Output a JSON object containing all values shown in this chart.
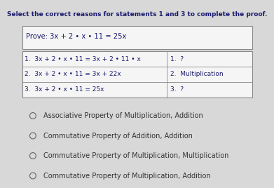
{
  "title": "Select the correct reasons for statements 1 and 3 to complete the proof.",
  "prove_label": "Prove: 3x + 2 • x • 11 = 25x",
  "table_rows": [
    [
      "1.  3x + 2 • x • 11 = 3x + 2 • 11 • x",
      "1.  ?"
    ],
    [
      "2.  3x + 2 • x • 11 = 3x + 22x",
      "2.  Multiplication"
    ],
    [
      "3.  3x + 2 • x • 11 = 25x",
      "3.  ?"
    ]
  ],
  "options": [
    "Associative Property of Multiplication, Addition",
    "Commutative Property of Addition, Addition",
    "Commutative Property of Multiplication, Multiplication",
    "Commutative Property of Multiplication, Addition"
  ],
  "bg_color": "#d8d8d8",
  "box_color": "#f5f5f5",
  "title_color": "#1a1a6e",
  "text_color": "#1a1a6e",
  "border_color": "#888888",
  "option_text_color": "#333333",
  "title_fontsize": 6.5,
  "prove_fontsize": 7.2,
  "table_fontsize": 6.5,
  "option_fontsize": 7.0,
  "col_split": 0.63
}
